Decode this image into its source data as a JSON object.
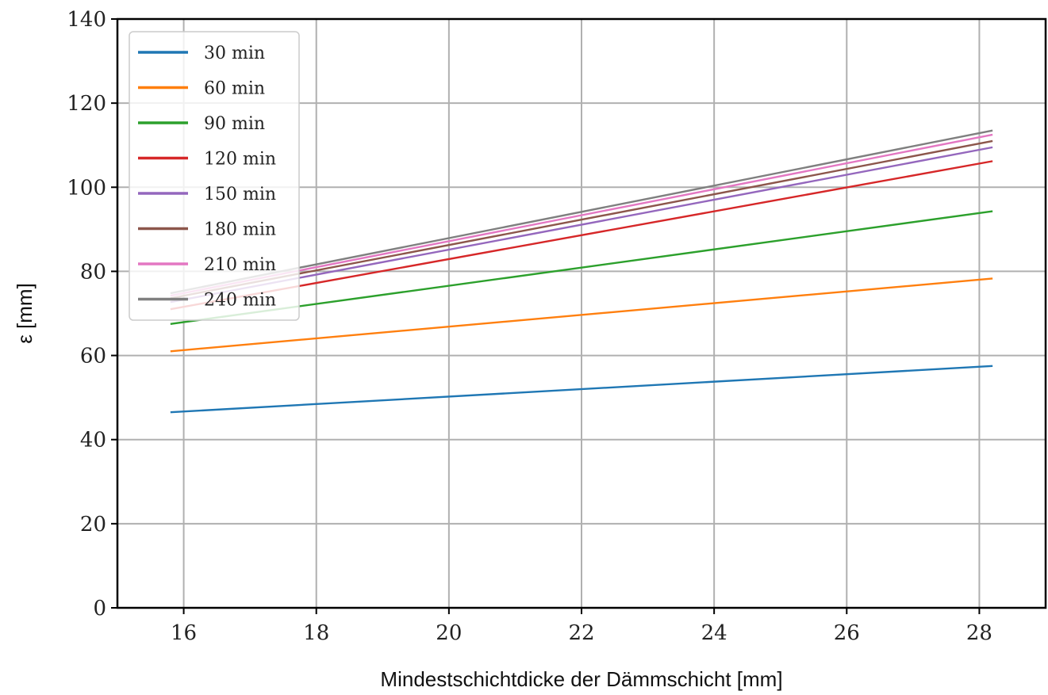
{
  "chart_data": {
    "type": "line",
    "xlabel": "Mindestschichtdicke der Dämmschicht [mm]",
    "ylabel": "ε [mm]",
    "xlim": [
      15,
      29
    ],
    "ylim": [
      0,
      140
    ],
    "xticks": [
      16,
      18,
      20,
      22,
      24,
      26,
      28
    ],
    "yticks": [
      0,
      20,
      40,
      60,
      80,
      100,
      120,
      140
    ],
    "grid": true,
    "legend_position": "top-left",
    "x": [
      15.8,
      28.2
    ],
    "series": [
      {
        "name": "30 min",
        "color": "#1f77b4",
        "values": [
          46.5,
          57.5
        ]
      },
      {
        "name": "60 min",
        "color": "#ff7f0e",
        "values": [
          61.0,
          78.3
        ]
      },
      {
        "name": "90 min",
        "color": "#2ca02c",
        "values": [
          67.5,
          94.3
        ]
      },
      {
        "name": "120 min",
        "color": "#d62728",
        "values": [
          71.0,
          106.2
        ]
      },
      {
        "name": "150 min",
        "color": "#9467bd",
        "values": [
          72.7,
          109.5
        ]
      },
      {
        "name": "180 min",
        "color": "#8c564b",
        "values": [
          73.6,
          111.0
        ]
      },
      {
        "name": "210 min",
        "color": "#e377c2",
        "values": [
          74.2,
          112.5
        ]
      },
      {
        "name": "240 min",
        "color": "#7f7f7f",
        "values": [
          74.8,
          113.5
        ]
      }
    ]
  }
}
